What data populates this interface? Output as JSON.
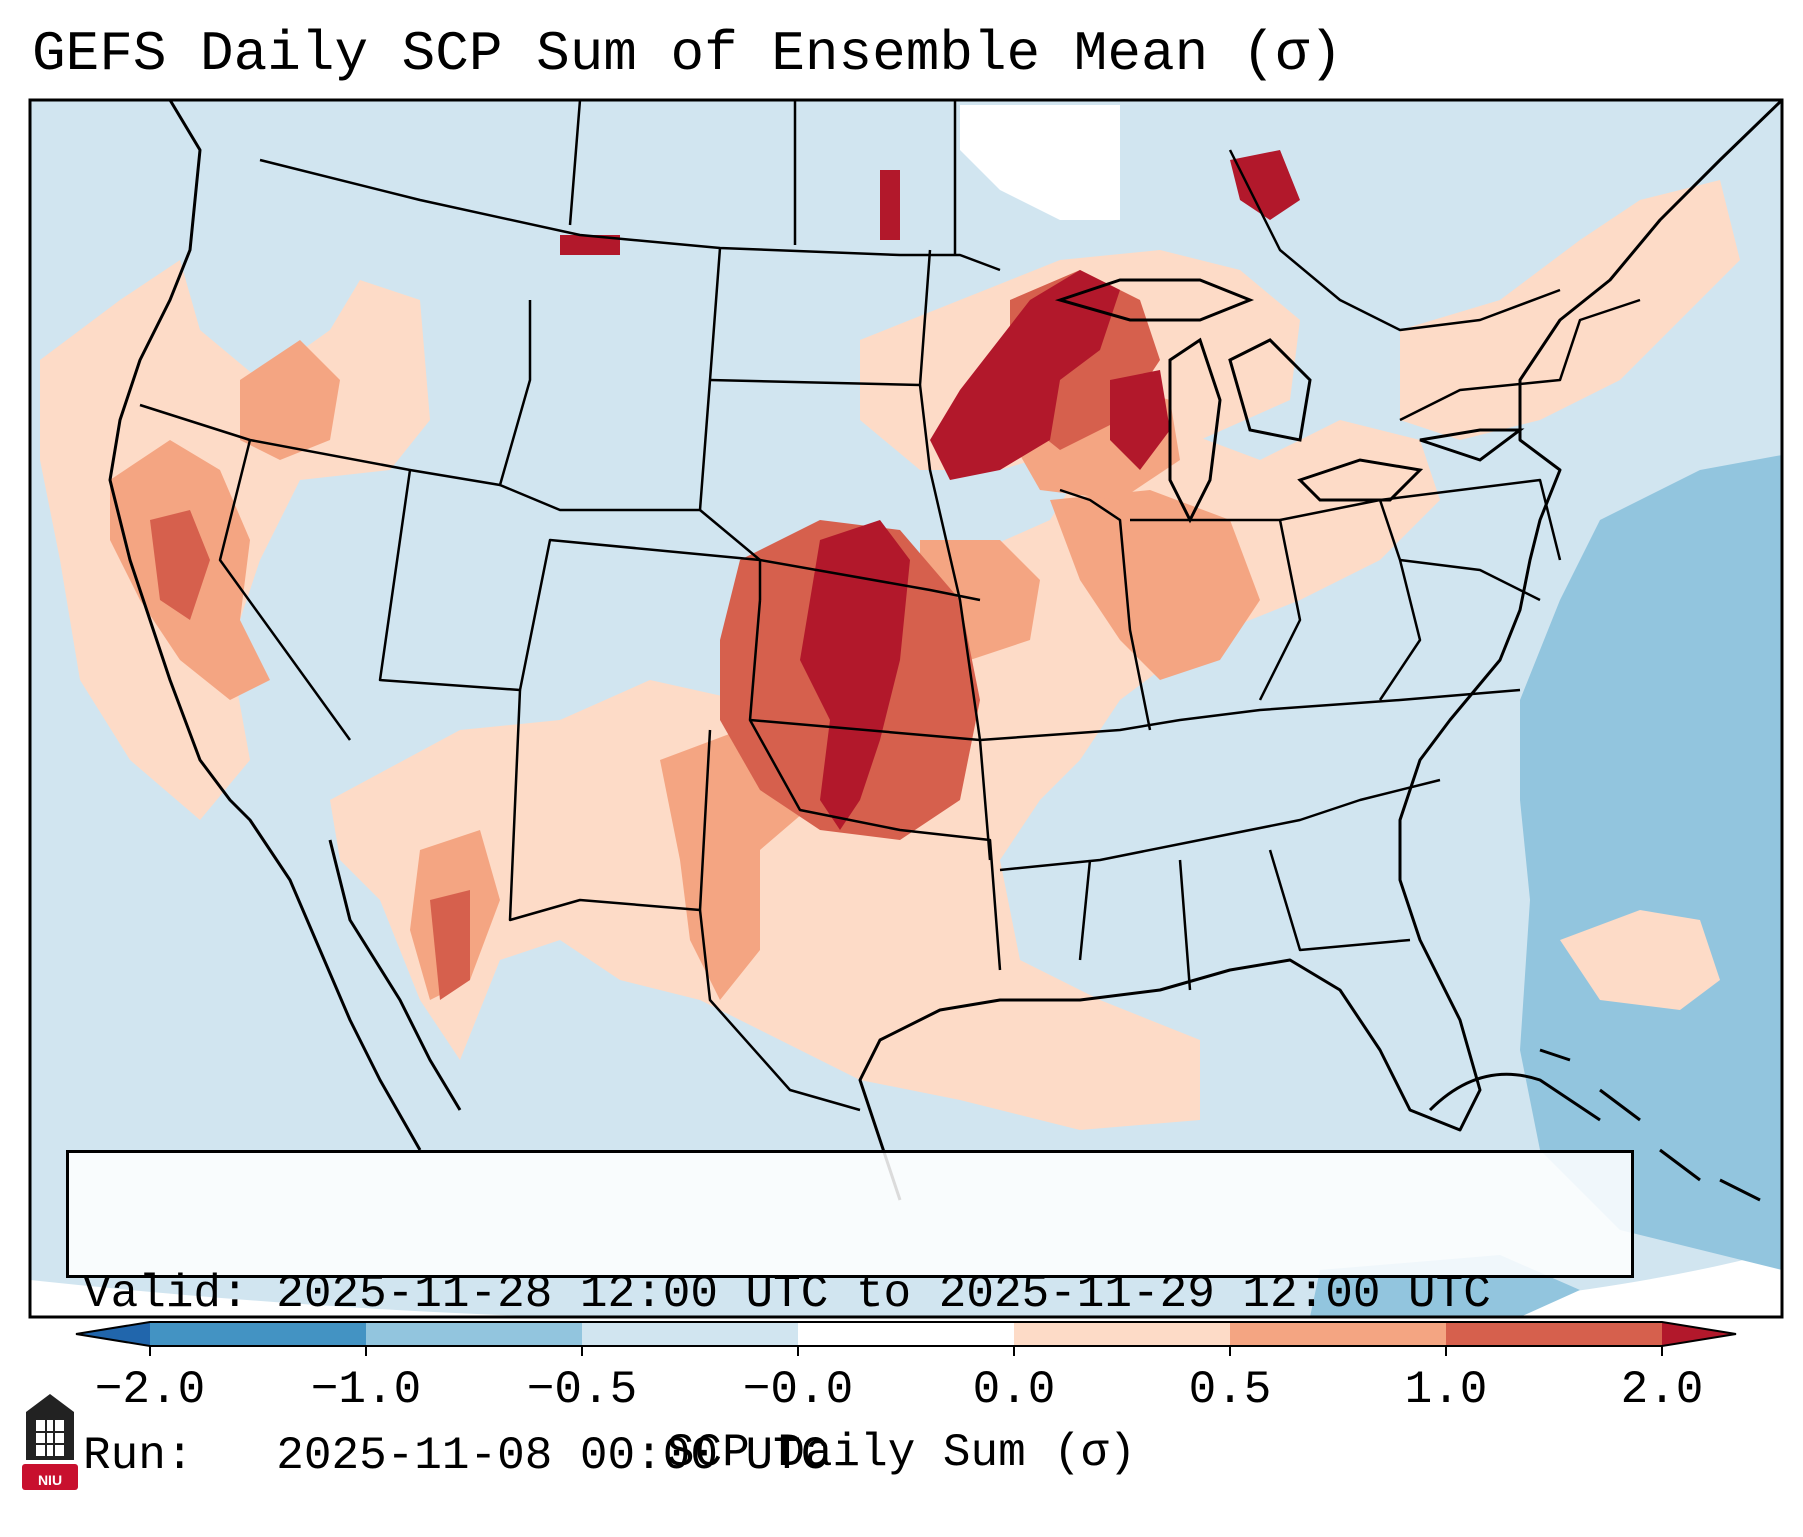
{
  "title": "GEFS Daily SCP Sum of Ensemble Mean (σ)",
  "info": {
    "valid_label": "Valid:",
    "valid_value": "2025-11-28 12:00 UTC to 2025-11-29 12:00 UTC",
    "run_label": "Run:",
    "run_value": "2025-11-08 00:00 UTC"
  },
  "colorbar": {
    "label": "SCP Daily Sum (σ)",
    "ticks": [
      "−2.0",
      "−1.0",
      "−0.5",
      "−0.0",
      "0.0",
      "0.5",
      "1.0",
      "2.0"
    ],
    "bins": [
      {
        "range": "< -2.0",
        "color": "#2166ac"
      },
      {
        "range": "-2.0 to -1.0",
        "color": "#4393c3"
      },
      {
        "range": "-1.0 to -0.5",
        "color": "#92c5de"
      },
      {
        "range": "-0.5 to -0.0",
        "color": "#d1e5f0"
      },
      {
        "range": "-0.0 to 0.0",
        "color": "#ffffff"
      },
      {
        "range": "0.0 to 0.5",
        "color": "#fddbc7"
      },
      {
        "range": "0.5 to 1.0",
        "color": "#f4a582"
      },
      {
        "range": "1.0 to 2.0",
        "color": "#d6604d"
      },
      {
        "range": "> 2.0",
        "color": "#b2182b"
      }
    ]
  },
  "field": {
    "background_color": "#d1e5f0",
    "regions": [
      {
        "name": "Southern Plains / Central Plains maximum",
        "level": "> 2.0"
      },
      {
        "name": "Upper Midwest / Great Lakes",
        "level": "> 2.0"
      },
      {
        "name": "Ohio Valley / Lower Great Lakes",
        "level": "0.5 to 1.0"
      },
      {
        "name": "Southwest / West Texas",
        "level": "1.0 to 2.0"
      },
      {
        "name": "California / Great Basin",
        "level": "0.5 to 1.0"
      },
      {
        "name": "Lower Mississippi / Gulf Coast",
        "level": "0.0 to 0.5"
      },
      {
        "name": "Western Atlantic",
        "level": "-1.0 to -0.5"
      }
    ]
  },
  "logo": {
    "text": "NIU",
    "color": "#c8102e"
  }
}
